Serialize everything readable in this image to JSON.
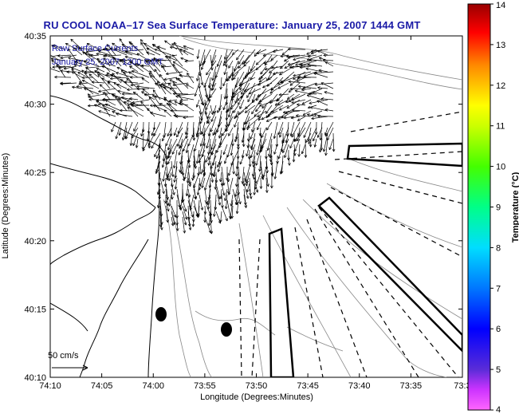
{
  "title": "RU COOL  NOAA–17  Sea Surface Temperature:  January 25, 2007 1444 GMT",
  "overlay": {
    "line1": "Raw Surface Currents",
    "line2": "January 25, 2007 1200 GMT"
  },
  "axes": {
    "xlabel": "Longitude (Degrees:Minutes)",
    "ylabel": "Latitude (Degrees:Minutes)",
    "xticks": [
      "74:10",
      "74:05",
      "74:00",
      "73:55",
      "73:50",
      "73:45",
      "73:40",
      "73:35",
      "73:3"
    ],
    "yticks": [
      "40:35",
      "40:30",
      "40:25",
      "40:20",
      "40:15",
      "40:10"
    ]
  },
  "scale_label": "50 cm/s",
  "colorbar": {
    "label": "Temperature (°C)",
    "ticks": [
      "14",
      "13",
      "12",
      "11",
      "10",
      "9",
      "8",
      "7",
      "6",
      "5",
      "4"
    ],
    "min": 4,
    "max": 14
  }
}
